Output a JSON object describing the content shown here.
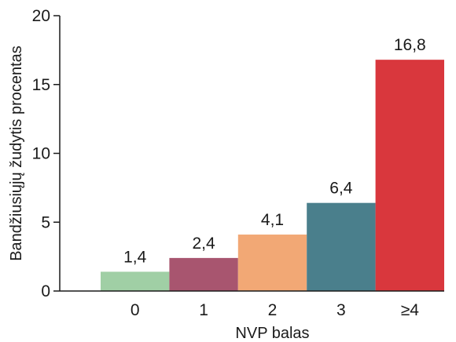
{
  "chart_data": {
    "type": "bar",
    "categories": [
      "0",
      "1",
      "2",
      "3",
      "≥4"
    ],
    "values": [
      1.4,
      2.4,
      4.1,
      6.4,
      16.8
    ],
    "value_labels": [
      "1,4",
      "2,4",
      "4,1",
      "6,4",
      "16,8"
    ],
    "bar_colors": [
      "#a0cfa5",
      "#a8556f",
      "#f2a875",
      "#4a7f8c",
      "#d9373d"
    ],
    "xlabel": "NVP balas",
    "ylabel": "Bandžiusiųjų žudytis procentas",
    "ylim": [
      0,
      20
    ],
    "yticks": [
      "0",
      "5",
      "10",
      "15",
      "20"
    ],
    "ytick_values": [
      0,
      5,
      10,
      15,
      20
    ],
    "grid": false,
    "legend": "none"
  }
}
